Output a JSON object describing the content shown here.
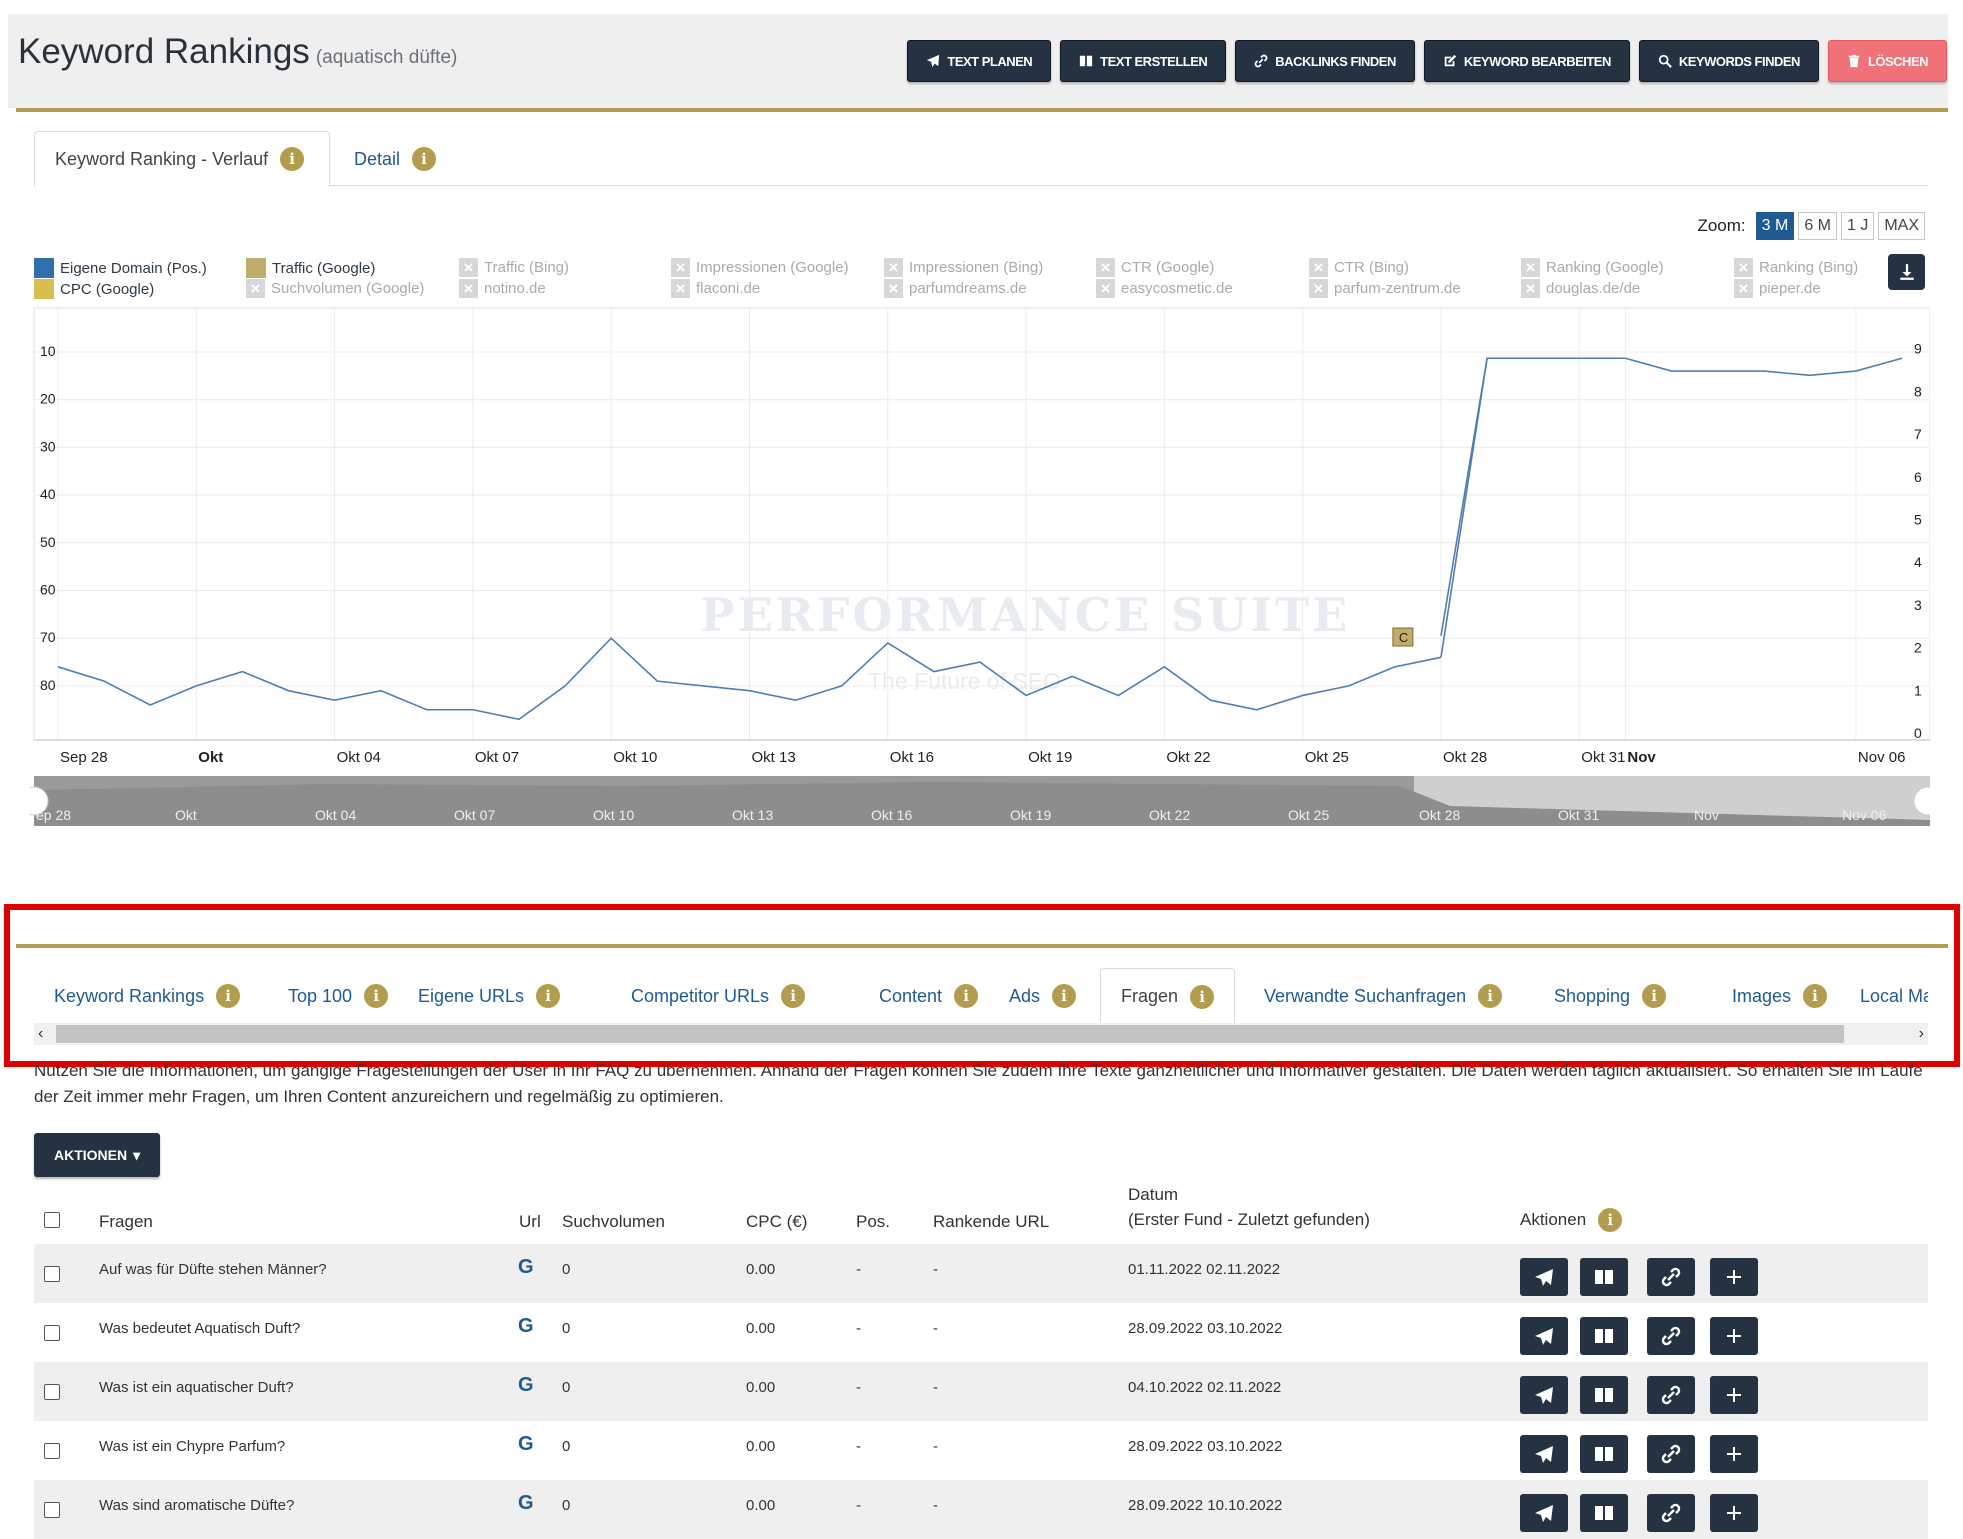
{
  "header": {
    "title": "Keyword Rankings",
    "subtitle": "(aquatisch düfte)",
    "buttons": {
      "text_planen": "TEXT PLANEN",
      "text_erstellen": "TEXT ERSTELLEN",
      "backlinks_finden": "BACKLINKS FINDEN",
      "keyword_bearbeiten": "KEYWORD BEARBEITEN",
      "keywords_finden": "KEYWORDS FINDEN",
      "loeschen": "LÖSCHEN"
    }
  },
  "chart_tabs": {
    "verlauf": "Keyword Ranking - Verlauf",
    "detail": "Detail"
  },
  "zoom": {
    "label": "Zoom:",
    "options": [
      "3 M",
      "6 M",
      "1 J",
      "MAX"
    ],
    "selected": "3 M"
  },
  "legend": {
    "row1": [
      "Eigene Domain (Pos.)",
      "Traffic (Google)",
      "Traffic (Bing)",
      "Impressionen (Google)",
      "Impressionen (Bing)",
      "CTR (Google)",
      "CTR (Bing)",
      "Ranking (Google)",
      "Ranking (Bing)"
    ],
    "row2": [
      "CPC (Google)",
      "Suchvolumen (Google)",
      "notino.de",
      "flaconi.de",
      "parfumdreams.de",
      "easycosmetic.de",
      "parfum-zentrum.de",
      "douglas.de/de",
      "pieper.de"
    ]
  },
  "colors": {
    "accent": "#b39c4d",
    "navy": "#243242",
    "link": "#1f5a92",
    "series_own": "#2f6fad",
    "series_traffic": "#c1ad6a",
    "series_cpc": "#d8bd4f",
    "danger": "#f0737a"
  },
  "watermark": {
    "line1": "PERFORMANCE SUITE",
    "line2": "The Future of SEO"
  },
  "chart_data": {
    "type": "line",
    "x_tick_labels": [
      "Sep 28",
      "Okt",
      "Okt 04",
      "Okt 07",
      "Okt 10",
      "Okt 13",
      "Okt 16",
      "Okt 19",
      "Okt 22",
      "Okt 25",
      "Okt 28",
      "Okt 31",
      "Nov",
      "Nov 06"
    ],
    "navigator_labels": [
      "ep 28",
      "Okt",
      "Okt 04",
      "Okt 07",
      "Okt 10",
      "Okt 13",
      "Okt 16",
      "Okt 19",
      "Okt 22",
      "Okt 25",
      "Okt 28",
      "Okt 31",
      "Nov",
      "Nov 06"
    ],
    "y_left": {
      "reversed": true,
      "ticks": [
        10,
        20,
        30,
        40,
        50,
        60,
        70,
        80
      ]
    },
    "y_right": {
      "ticks": [
        0,
        1,
        2,
        3,
        4,
        5,
        6,
        7,
        8,
        9
      ]
    },
    "series": [
      {
        "name": "Eigene Domain (Pos.)",
        "axis": "left",
        "x": [
          "Sep 28",
          "Sep 29",
          "Sep 30",
          "Okt 01",
          "Okt 02",
          "Okt 03",
          "Okt 04",
          "Okt 05",
          "Okt 06",
          "Okt 07",
          "Okt 08",
          "Okt 09",
          "Okt 10",
          "Okt 11",
          "Okt 12",
          "Okt 13",
          "Okt 14",
          "Okt 15",
          "Okt 16",
          "Okt 17",
          "Okt 18",
          "Okt 19",
          "Okt 20",
          "Okt 21",
          "Okt 22",
          "Okt 23",
          "Okt 24",
          "Okt 25",
          "Okt 26",
          "Okt 27",
          "Okt 28"
        ],
        "values": [
          76,
          79,
          84,
          80,
          77,
          81,
          83,
          81,
          85,
          85,
          87,
          80,
          70,
          79,
          80,
          81,
          83,
          80,
          71,
          77,
          75,
          82,
          78,
          82,
          76,
          83,
          85,
          82,
          80,
          76,
          74
        ]
      },
      {
        "name": "Traffic (Google)",
        "axis": "right",
        "x": [
          "Okt 28",
          "Okt 29",
          "Okt 30",
          "Okt 31",
          "Nov",
          "Nov 02",
          "Nov 03",
          "Nov 04",
          "Nov 05",
          "Nov 06",
          "Nov 07"
        ],
        "values": [
          2.3,
          8.8,
          8.8,
          8.8,
          8.8,
          8.5,
          8.5,
          8.5,
          8.4,
          8.5,
          8.8
        ]
      }
    ],
    "annotation": {
      "label": "C",
      "x": "Okt 27"
    }
  },
  "lower_tabs": {
    "items": [
      "Keyword Rankings",
      "Top 100",
      "Eigene URLs",
      "Competitor URLs",
      "Content",
      "Ads",
      "Fragen",
      "Verwandte Suchanfragen",
      "Shopping",
      "Images",
      "Local Ma"
    ],
    "active": "Fragen"
  },
  "description": "Nutzen Sie die Informationen, um gängige Fragestellungen der User in Ihr FAQ zu übernehmen. Anhand der Fragen können Sie zudem Ihre Texte ganzheitlicher und informativer gestalten. Die Daten werden täglich aktualisiert. So erhalten Sie im Laufe der Zeit immer mehr Fragen, um Ihren Content anzureichern und regelmäßig zu optimieren.",
  "aktionen_button": "AKTIONEN",
  "table": {
    "headers": {
      "fragen": "Fragen",
      "url": "Url",
      "suchvolumen": "Suchvolumen",
      "cpc": "CPC (€)",
      "pos": "Pos.",
      "rankende_url": "Rankende URL",
      "datum_line1": "Datum",
      "datum_line2": "(Erster Fund - Zuletzt gefunden)",
      "aktionen": "Aktionen"
    },
    "rows": [
      {
        "frage": "Auf was für Düfte stehen Männer?",
        "url": "G",
        "suchvolumen": "0",
        "cpc": "0.00",
        "pos": "-",
        "rankende_url": "-",
        "datum": "01.11.2022 02.11.2022"
      },
      {
        "frage": "Was bedeutet Aquatisch Duft?",
        "url": "G",
        "suchvolumen": "0",
        "cpc": "0.00",
        "pos": "-",
        "rankende_url": "-",
        "datum": "28.09.2022 03.10.2022"
      },
      {
        "frage": "Was ist ein aquatischer Duft?",
        "url": "G",
        "suchvolumen": "0",
        "cpc": "0.00",
        "pos": "-",
        "rankende_url": "-",
        "datum": "04.10.2022 02.11.2022"
      },
      {
        "frage": "Was ist ein Chypre Parfum?",
        "url": "G",
        "suchvolumen": "0",
        "cpc": "0.00",
        "pos": "-",
        "rankende_url": "-",
        "datum": "28.09.2022 03.10.2022"
      },
      {
        "frage": "Was sind aromatische Düfte?",
        "url": "G",
        "suchvolumen": "0",
        "cpc": "0.00",
        "pos": "-",
        "rankende_url": "-",
        "datum": "28.09.2022 10.10.2022"
      }
    ]
  }
}
